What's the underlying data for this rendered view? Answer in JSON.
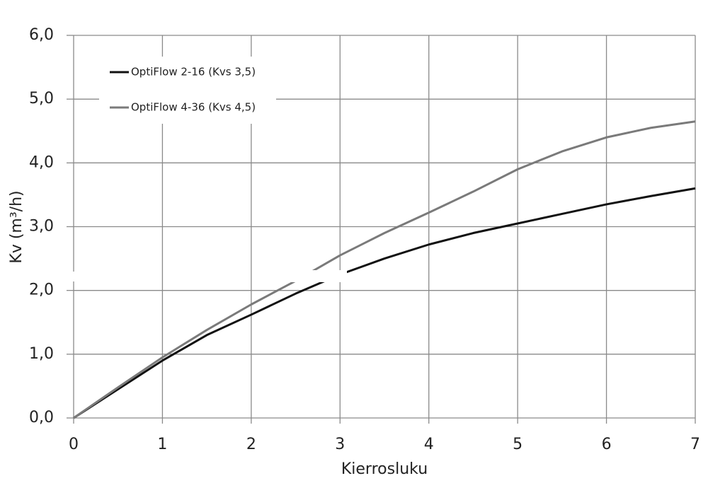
{
  "chart_data": {
    "type": "line",
    "x": [
      0,
      0.5,
      1,
      1.5,
      2,
      2.5,
      3,
      3.5,
      4,
      4.5,
      5,
      5.5,
      6,
      6.5,
      7
    ],
    "series": [
      {
        "name": "OptiFlow 2-16 (Kvs 3,5)",
        "color": "#111111",
        "values": [
          0,
          0.45,
          0.9,
          1.3,
          1.62,
          1.95,
          2.25,
          2.5,
          2.72,
          2.9,
          3.05,
          3.2,
          3.35,
          3.48,
          3.6
        ]
      },
      {
        "name": "OptiFlow 4-36 (Kvs 4,5)",
        "color": "#7a7a7a",
        "values": [
          0,
          0.48,
          0.95,
          1.38,
          1.78,
          2.15,
          2.55,
          2.9,
          3.22,
          3.55,
          3.9,
          4.18,
          4.4,
          4.55,
          4.65
        ]
      }
    ],
    "xlabel": "Kierrosluku",
    "ylabel": "Kv (m³/h)",
    "xlim": [
      0,
      7
    ],
    "xticks": [
      0,
      1,
      2,
      3,
      4,
      5,
      6,
      7
    ],
    "ylim": [
      0,
      6
    ],
    "yticks": [
      {
        "value": 0,
        "label": "0,0"
      },
      {
        "value": 1,
        "label": "1,0"
      },
      {
        "value": 2,
        "label": "2,0"
      },
      {
        "value": 3,
        "label": "3,0"
      },
      {
        "value": 4,
        "label": "4,0"
      },
      {
        "value": 5,
        "label": "5,0"
      },
      {
        "value": 6,
        "label": "6,0"
      }
    ],
    "grid": true
  }
}
